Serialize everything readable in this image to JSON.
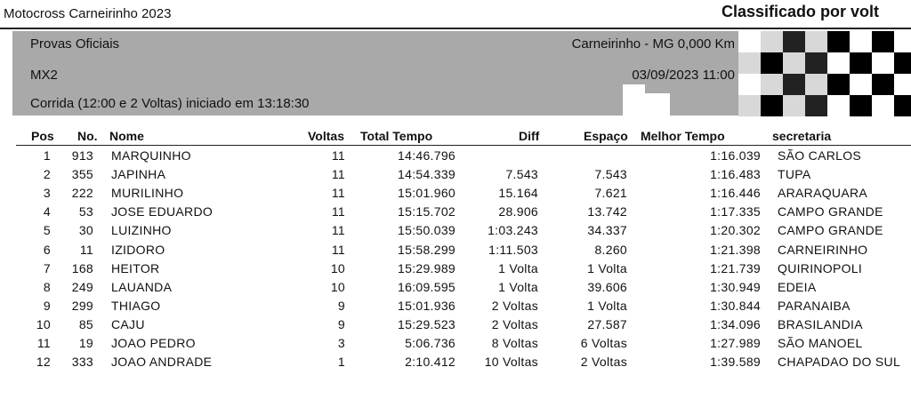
{
  "header": {
    "event": "Motocross Carneirinho 2023",
    "report": "Classificado por volt"
  },
  "info": {
    "session": "Provas Oficiais",
    "class": "MX2",
    "race": "Corrida (12:00 e 2 Voltas) iniciado em 13:18:30",
    "location": "Carneirinho - MG 0,000 Km",
    "datetime": "03/09/2023 11:00"
  },
  "table": {
    "columns": [
      "Pos",
      "No.",
      "Nome",
      "Voltas",
      "Total Tempo",
      "Diff",
      "Espaço",
      "Melhor Tempo",
      "secretaria"
    ],
    "rows": [
      [
        "1",
        "913",
        "MARQUINHO",
        "11",
        "14:46.796",
        null,
        null,
        "1:16.039",
        "SÃO CARLOS"
      ],
      [
        "2",
        "355",
        "JAPINHA",
        "11",
        "14:54.339",
        "7.543",
        "7.543",
        "1:16.483",
        "TUPA"
      ],
      [
        "3",
        "222",
        "MURILINHO",
        "11",
        "15:01.960",
        "15.164",
        "7.621",
        "1:16.446",
        "ARARAQUARA"
      ],
      [
        "4",
        "53",
        "JOSE EDUARDO",
        "11",
        "15:15.702",
        "28.906",
        "13.742",
        "1:17.335",
        "CAMPO GRANDE"
      ],
      [
        "5",
        "30",
        "LUIZINHO",
        "11",
        "15:50.039",
        "1:03.243",
        "34.337",
        "1:20.302",
        "CAMPO GRANDE"
      ],
      [
        "6",
        "11",
        "IZIDORO",
        "11",
        "15:58.299",
        "1:11.503",
        "8.260",
        "1:21.398",
        "CARNEIRINHO"
      ],
      [
        "7",
        "168",
        "HEITOR",
        "10",
        "15:29.989",
        "1 Volta",
        "1 Volta",
        "1:21.739",
        "QUIRINOPOLI"
      ],
      [
        "8",
        "249",
        "LAUANDA",
        "10",
        "16:09.595",
        "1 Volta",
        "39.606",
        "1:30.949",
        "EDEIA"
      ],
      [
        "9",
        "299",
        "THIAGO",
        "9",
        "15:01.936",
        "2 Voltas",
        "1 Volta",
        "1:30.844",
        "PARANAIBA"
      ],
      [
        "10",
        "85",
        "CAJU",
        "9",
        "15:29.523",
        "2 Voltas",
        "27.587",
        "1:34.096",
        "BRASILANDIA"
      ],
      [
        "11",
        "19",
        "JOAO PEDRO",
        "3",
        "5:06.736",
        "8 Voltas",
        "6 Voltas",
        "1:27.989",
        "SÃO MANOEL"
      ],
      [
        "12",
        "333",
        "JOAO ANDRADE",
        "1",
        "2:10.412",
        "10 Voltas",
        "2 Voltas",
        "1:39.589",
        "CHAPADAO DO SUL"
      ]
    ]
  }
}
